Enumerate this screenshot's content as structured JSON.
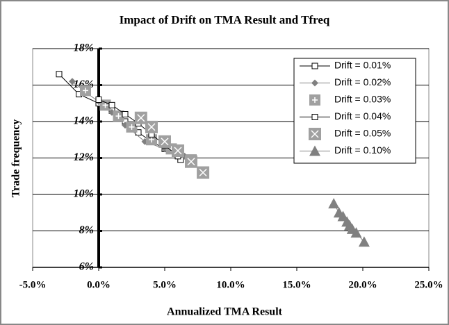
{
  "chart_data": {
    "type": "scatter",
    "title": "Impact of Drift on TMA Result and Tfreq",
    "x_label": "Annualized TMA Result",
    "y_label": "Trade  frequency",
    "xlim": [
      -5,
      25
    ],
    "xticks": [
      {
        "value": -5,
        "label": "-5.0%"
      },
      {
        "value": 0,
        "label": "0.0%"
      },
      {
        "value": 5,
        "label": "5.0%"
      },
      {
        "value": 10,
        "label": "10.0%"
      },
      {
        "value": 15,
        "label": "15.0%"
      },
      {
        "value": 20,
        "label": "20.0%"
      },
      {
        "value": 25,
        "label": "25.0%"
      }
    ],
    "ylim": [
      6,
      18
    ],
    "yticks": [
      {
        "value": 6,
        "label": "6%"
      },
      {
        "value": 8,
        "label": "8%"
      },
      {
        "value": 10,
        "label": "10%"
      },
      {
        "value": 12,
        "label": "12%"
      },
      {
        "value": 14,
        "label": "14%"
      },
      {
        "value": 16,
        "label": "16%"
      },
      {
        "value": 18,
        "label": "18%"
      }
    ],
    "grid": true,
    "legend": "top-right",
    "series": [
      {
        "name": "Drift  = 0.01%",
        "color": "#000000",
        "marker": "square-open",
        "line": true,
        "x": [
          -3.0,
          -1.5,
          0.0,
          1.0,
          2.0,
          3.0,
          4.0,
          5.0,
          6.2
        ],
        "values": [
          16.6,
          15.5,
          15.0,
          14.6,
          14.0,
          13.4,
          12.9,
          12.5,
          11.9
        ]
      },
      {
        "name": "Drift  = 0.02%",
        "color": "#808080",
        "marker": "diamond",
        "line": true,
        "x": [
          -2.0,
          -1.0,
          0.0,
          1.0,
          2.0,
          3.5,
          5.0,
          6.5
        ],
        "values": [
          16.2,
          15.6,
          15.1,
          14.5,
          13.8,
          12.9,
          12.5,
          12.1
        ]
      },
      {
        "name": "Drift  = 0.03%",
        "color": "#a0a0a0",
        "marker": "square-plus",
        "line": false,
        "x": [
          -1.0,
          0.5,
          1.5,
          2.5,
          4.0,
          5.5,
          7.0
        ],
        "values": [
          15.7,
          14.9,
          14.3,
          13.7,
          13.0,
          12.5,
          11.9
        ]
      },
      {
        "name": "Drift  = 0.04%",
        "color": "#000000",
        "marker": "square-open",
        "line": true,
        "x": [
          0.0,
          1.0,
          2.0,
          3.0,
          4.0,
          5.0,
          6.0
        ],
        "values": [
          15.2,
          14.9,
          14.4,
          13.9,
          13.3,
          12.7,
          12.1
        ]
      },
      {
        "name": "Drift  = 0.05%",
        "color": "#a0a0a0",
        "marker": "square-x",
        "line": false,
        "x": [
          3.2,
          4.0,
          5.0,
          6.0,
          7.0,
          7.9
        ],
        "values": [
          14.2,
          13.7,
          12.9,
          12.4,
          11.8,
          11.2
        ]
      },
      {
        "name": "Drift  = 0.10%",
        "color": "#808080",
        "marker": "triangle",
        "line": true,
        "x": [
          17.8,
          18.2,
          18.5,
          18.8,
          19.0,
          19.2,
          19.5,
          20.1
        ],
        "values": [
          9.5,
          9.0,
          8.8,
          8.5,
          8.3,
          8.1,
          7.9,
          7.4
        ]
      }
    ]
  }
}
